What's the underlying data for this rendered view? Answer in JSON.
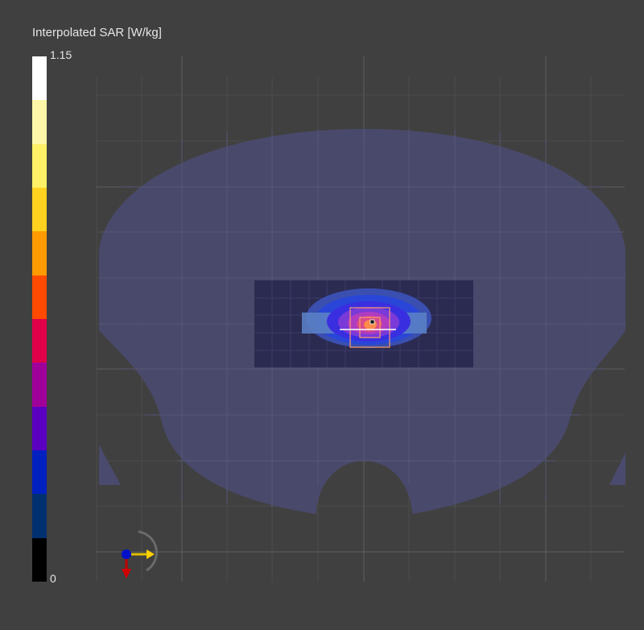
{
  "legend": {
    "title": "Interpolated SAR [W/kg]",
    "max_label": "1.15",
    "min_label": "0",
    "colors": [
      "#ffffff",
      "#fff7a8",
      "#fff066",
      "#ffd21f",
      "#ff9a00",
      "#ff4a00",
      "#e0004a",
      "#a0009a",
      "#5a00c0",
      "#0020c0",
      "#003070",
      "#000000"
    ]
  },
  "scene": {
    "background": "#404040",
    "phantom_color": "#4a4a6e",
    "grid_color": "#5a5a5a"
  }
}
